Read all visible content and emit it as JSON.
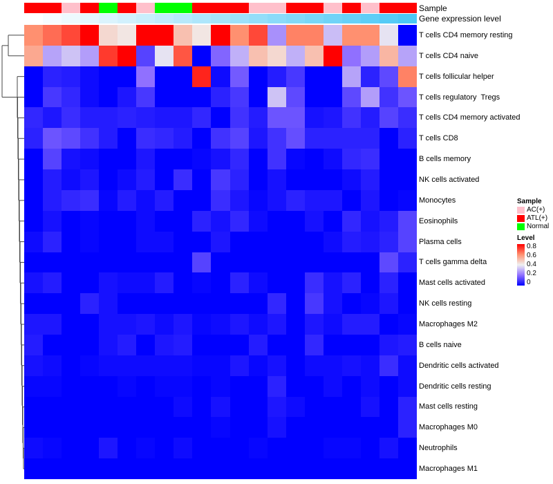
{
  "chart_data": {
    "type": "heatmap",
    "title": "",
    "annotations": {
      "sample_label": "Sample",
      "gene_label": "Gene expression level",
      "samples": [
        "ATL(+)",
        "ATL(+)",
        "AC(+)",
        "ATL(+)",
        "Normal",
        "ATL(+)",
        "AC(+)",
        "Normal",
        "Normal",
        "ATL(+)",
        "ATL(+)",
        "ATL(+)",
        "AC(+)",
        "AC(+)",
        "ATL(+)",
        "ATL(+)",
        "AC(+)",
        "ATL(+)",
        "AC(+)",
        "ATL(+)",
        "ATL(+)"
      ]
    },
    "rows": [
      "T cells CD4 memory resting",
      "T cells CD4 naive",
      "T cells follicular helper",
      "T cells regulatory  Tregs",
      "T cells CD4 memory activated",
      "T cells CD8",
      "B cells memory",
      "NK cells activated",
      "Monocytes",
      "Eosinophils",
      "Plasma cells",
      "T cells gamma delta",
      "Mast cells activated",
      "NK cells resting",
      "Macrophages M2",
      "B cells naive",
      "Dendritic cells activated",
      "Dendritic cells resting",
      "Mast cells resting",
      "Macrophages M0",
      "Neutrophils",
      "Macrophages M1"
    ],
    "values": [
      [
        0.6,
        0.65,
        0.7,
        0.8,
        0.45,
        0.42,
        0.8,
        0.8,
        0.5,
        0.42,
        0.8,
        0.6,
        0.7,
        0.25,
        0.62,
        0.62,
        0.32,
        0.6,
        0.6,
        0.38,
        0
      ],
      [
        0.55,
        0.28,
        0.33,
        0.27,
        0.72,
        0.8,
        0.12,
        0.38,
        0.68,
        0,
        0.18,
        0.3,
        0.5,
        0.45,
        0.3,
        0.5,
        0.8,
        0.2,
        0.27,
        0.52,
        0.28
      ],
      [
        0,
        0.06,
        0.05,
        0.02,
        0,
        0,
        0.2,
        0,
        0,
        0.75,
        0.02,
        0.16,
        0,
        0.05,
        0.1,
        0,
        0,
        0.28,
        0.06,
        0.13,
        0.62
      ],
      [
        0,
        0.1,
        0.07,
        0.02,
        0,
        0.04,
        0.1,
        0,
        0,
        0,
        0.06,
        0.1,
        0,
        0.33,
        0.13,
        0,
        0,
        0.13,
        0.27,
        0.09,
        0.15
      ],
      [
        0.07,
        0.04,
        0.08,
        0.05,
        0.05,
        0.06,
        0.05,
        0.04,
        0.04,
        0.07,
        0,
        0.09,
        0.05,
        0.15,
        0.15,
        0.03,
        0.04,
        0.09,
        0.05,
        0.12,
        0.08
      ],
      [
        0.06,
        0.15,
        0.13,
        0.09,
        0.05,
        0,
        0.08,
        0.07,
        0.05,
        0,
        0.09,
        0.12,
        0.04,
        0.09,
        0.14,
        0.06,
        0.06,
        0.06,
        0.06,
        0,
        0.06
      ],
      [
        0,
        0.12,
        0.03,
        0.02,
        0,
        0,
        0.04,
        0,
        0,
        0.01,
        0.03,
        0.07,
        0,
        0.09,
        0.01,
        0,
        0.02,
        0.07,
        0.08,
        0,
        0
      ],
      [
        0,
        0.05,
        0.02,
        0.04,
        0,
        0.02,
        0.05,
        0,
        0.08,
        0,
        0.1,
        0.06,
        0,
        0.03,
        0,
        0,
        0,
        0.02,
        0.05,
        0,
        0
      ],
      [
        0,
        0.05,
        0.07,
        0.08,
        0.01,
        0.05,
        0.02,
        0.05,
        0,
        0,
        0.08,
        0.04,
        0.01,
        0.03,
        0.06,
        0.04,
        0.04,
        0,
        0.04,
        0,
        0.01
      ],
      [
        0,
        0.03,
        0,
        0.01,
        0,
        0,
        0.02,
        0,
        0,
        0.06,
        0.03,
        0.07,
        0.02,
        0,
        0,
        0.03,
        0,
        0.07,
        0.03,
        0.05,
        0.12
      ],
      [
        0.02,
        0.06,
        0,
        0.01,
        0,
        0,
        0.02,
        0.02,
        0,
        0,
        0.04,
        0,
        0,
        0,
        0,
        0,
        0.02,
        0.05,
        0.04,
        0.06,
        0.12
      ],
      [
        0,
        0,
        0,
        0,
        0,
        0,
        0,
        0,
        0,
        0.12,
        0,
        0,
        0,
        0,
        0,
        0,
        0,
        0,
        0,
        0.13,
        0.06
      ],
      [
        0.03,
        0.05,
        0,
        0,
        0.03,
        0.02,
        0.02,
        0.05,
        0,
        0.01,
        0,
        0.06,
        0.02,
        0,
        0,
        0.08,
        0.03,
        0.06,
        0,
        0.06,
        0
      ],
      [
        0,
        0,
        0,
        0.06,
        0.03,
        0,
        0,
        0,
        0,
        0,
        0,
        0,
        0,
        0.07,
        0,
        0.1,
        0.03,
        0,
        0.01,
        0.04,
        0
      ],
      [
        0.04,
        0.04,
        0,
        0,
        0.03,
        0.03,
        0.04,
        0.02,
        0.04,
        0.01,
        0.02,
        0.04,
        0.02,
        0.04,
        0,
        0.04,
        0.02,
        0.05,
        0.05,
        0,
        0.01
      ],
      [
        0.05,
        0,
        0,
        0,
        0.03,
        0.05,
        0,
        0.04,
        0.05,
        0,
        0,
        0,
        0.05,
        0,
        0,
        0.07,
        0,
        0,
        0,
        0.04,
        0.05
      ],
      [
        0.03,
        0.02,
        0,
        0.01,
        0.02,
        0.02,
        0.02,
        0.02,
        0.02,
        0.01,
        0.01,
        0.04,
        0.01,
        0.03,
        0,
        0.02,
        0.02,
        0.03,
        0.02,
        0.08,
        0.02
      ],
      [
        0.01,
        0.01,
        0,
        0,
        0,
        0.01,
        0,
        0.01,
        0.01,
        0,
        0.01,
        0,
        0,
        0.06,
        0,
        0,
        0.02,
        0,
        0.02,
        0,
        0.02
      ],
      [
        0,
        0,
        0,
        0,
        0,
        0,
        0,
        0,
        0.02,
        0,
        0.03,
        0,
        0,
        0.04,
        0.02,
        0,
        0,
        0,
        0.03,
        0,
        0.06
      ],
      [
        0,
        0,
        0,
        0,
        0,
        0,
        0,
        0,
        0,
        0,
        0.01,
        0,
        0,
        0.03,
        0,
        0,
        0,
        0,
        0,
        0,
        0.06
      ],
      [
        0.02,
        0.01,
        0,
        0,
        0.04,
        0,
        0.01,
        0,
        0.02,
        0,
        0,
        0,
        0.01,
        0,
        0,
        0,
        0.01,
        0.01,
        0,
        0.03,
        0
      ],
      [
        0,
        0,
        0,
        0,
        0,
        0,
        0,
        0,
        0,
        0,
        0,
        0,
        0,
        0,
        0,
        0,
        0,
        0,
        0,
        0,
        0
      ]
    ],
    "legend": {
      "sample_title": "Sample",
      "sample_items": [
        {
          "label": "AC(+)",
          "color": "#FFC0CB"
        },
        {
          "label": "ATL(+)",
          "color": "#FF0000"
        },
        {
          "label": "Normal",
          "color": "#00FF00"
        }
      ],
      "level_title": "Level",
      "level_ticks": [
        "0.8",
        "0.6",
        "0.4",
        "0.2",
        "0"
      ],
      "range": [
        0,
        0.8
      ]
    },
    "colors": {
      "low": "#0000FF",
      "mid": "#F0F0F0",
      "high": "#FF0000",
      "gene_low": "#FFFFFF",
      "gene_high": "#4CC8F5"
    }
  }
}
